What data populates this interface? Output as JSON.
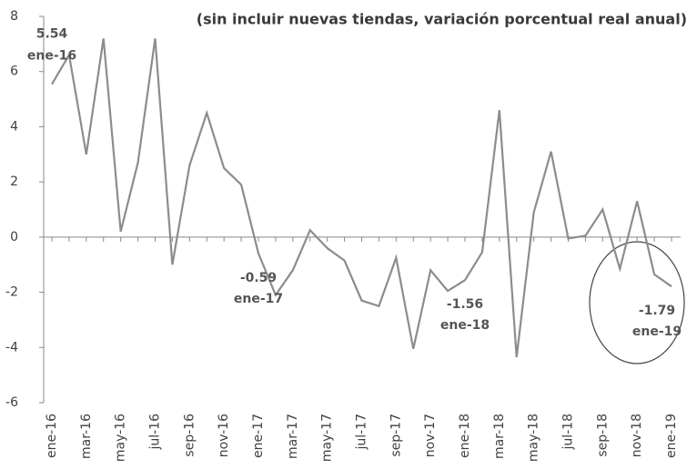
{
  "chart_data": {
    "type": "line",
    "title": "(sin incluir nuevas tiendas, variación porcentual real anual)",
    "categories": [
      "ene-16",
      null,
      "mar-16",
      null,
      "may-16",
      null,
      "jul-16",
      null,
      "sep-16",
      null,
      "nov-16",
      null,
      "ene-17",
      null,
      "mar-17",
      null,
      "may-17",
      null,
      "jul-17",
      null,
      "sep-17",
      null,
      "nov-17",
      null,
      "ene-18",
      null,
      "mar-18",
      null,
      "may-18",
      null,
      "jul-18",
      null,
      "sep-18",
      null,
      "nov-18",
      null,
      "ene-19"
    ],
    "series": [
      {
        "name": "variación porcentual real anual",
        "color": "#8c8c8c",
        "values": [
          5.54,
          6.6,
          3.0,
          7.2,
          0.2,
          2.7,
          7.2,
          -1.0,
          2.6,
          4.5,
          2.5,
          1.9,
          -0.59,
          -2.1,
          -1.2,
          0.25,
          -0.4,
          -0.85,
          -2.3,
          -2.5,
          -0.75,
          -4.05,
          -1.2,
          -1.95,
          -1.56,
          -0.55,
          4.6,
          -4.35,
          0.9,
          3.1,
          -0.05,
          0.05,
          1.0,
          -1.15,
          1.3,
          -1.35,
          -1.79
        ],
        "value_labels": [
          "5.54",
          null,
          null,
          null,
          null,
          null,
          null,
          null,
          null,
          null,
          null,
          null,
          "-0.59",
          null,
          null,
          null,
          null,
          null,
          null,
          null,
          null,
          null,
          null,
          null,
          "-1.56",
          null,
          null,
          null,
          null,
          null,
          null,
          null,
          null,
          null,
          null,
          null,
          "-1.79"
        ]
      }
    ],
    "ylim": [
      -6,
      8
    ],
    "yticks": [
      -6,
      -4,
      -2,
      0,
      2,
      4,
      6,
      8
    ],
    "grid": false
  }
}
